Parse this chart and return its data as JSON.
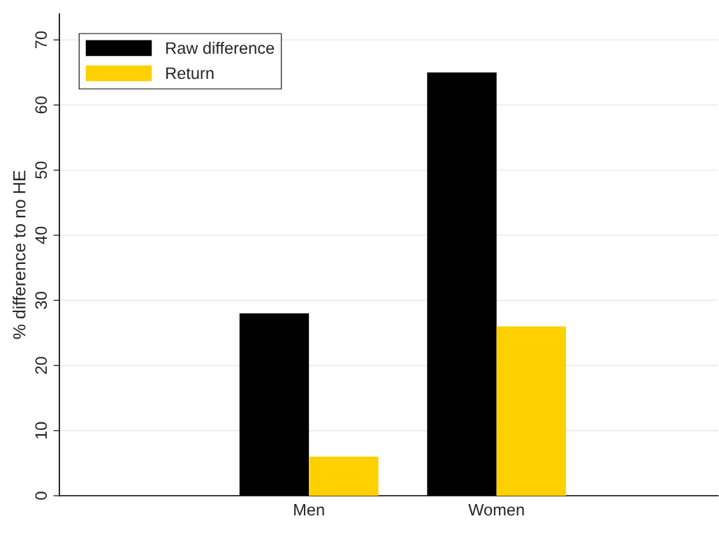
{
  "chart_data": {
    "type": "bar",
    "ylabel": "% difference to no HE",
    "categories": [
      "Men",
      "Women"
    ],
    "series": [
      {
        "name": "Raw difference",
        "color": "#000000",
        "values": [
          28,
          65
        ]
      },
      {
        "name": "Return",
        "color": "#ffd000",
        "values": [
          6,
          26
        ]
      }
    ],
    "ylim": [
      0,
      74
    ],
    "yticks": [
      0,
      10,
      20,
      30,
      40,
      50,
      60,
      70
    ],
    "grid": "y",
    "legend": "top left"
  }
}
